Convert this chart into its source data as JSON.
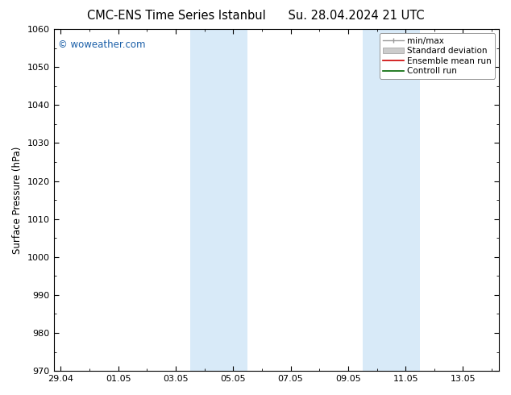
{
  "title_left": "CMC-ENS Time Series Istanbul",
  "title_right": "Su. 28.04.2024 21 UTC",
  "ylabel": "Surface Pressure (hPa)",
  "ylim": [
    970,
    1060
  ],
  "yticks": [
    970,
    980,
    990,
    1000,
    1010,
    1020,
    1030,
    1040,
    1050,
    1060
  ],
  "xtick_labels": [
    "29.04",
    "01.05",
    "03.05",
    "05.05",
    "07.05",
    "09.05",
    "11.05",
    "13.05"
  ],
  "xtick_positions": [
    0,
    2,
    4,
    6,
    8,
    10,
    12,
    14
  ],
  "xlim": [
    -0.25,
    15.25
  ],
  "shaded_regions": [
    {
      "start": 4.5,
      "end": 6.5
    },
    {
      "start": 10.5,
      "end": 12.5
    }
  ],
  "watermark_text": "© woweather.com",
  "watermark_color": "#1a5fa8",
  "background_color": "#ffffff",
  "plot_bg_color": "#ffffff",
  "shade_color": "#d8eaf8",
  "legend_entries": [
    {
      "label": "min/max",
      "color": "#aaaaaa"
    },
    {
      "label": "Standard deviation",
      "color": "#cccccc"
    },
    {
      "label": "Ensemble mean run",
      "color": "#cc0000"
    },
    {
      "label": "Controll run",
      "color": "#006600"
    }
  ],
  "title_fontsize": 10.5,
  "tick_fontsize": 8,
  "ylabel_fontsize": 8.5,
  "legend_fontsize": 7.5
}
